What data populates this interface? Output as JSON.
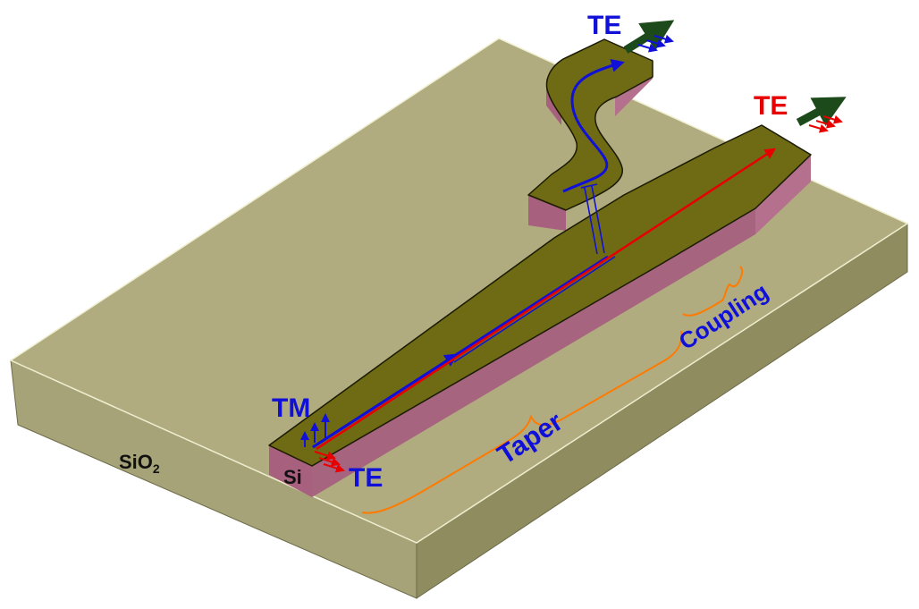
{
  "labels": {
    "substrate": "SiO",
    "substrate_subscript": "2",
    "core": "Si",
    "input_tm": "TM",
    "input_te": "TE",
    "output_cross_te": "TE",
    "output_through_te": "TE",
    "taper": "Taper",
    "coupling": "Coupling"
  },
  "colors": {
    "substrate_top": "#b0ac80",
    "substrate_front": "#a7a379",
    "substrate_right": "#8f8c60",
    "waveguide_top": "#6f6a14",
    "waveguide_side": "#a7607d",
    "tm_blue": "#1010d8",
    "te_red": "#e80000",
    "bracket_orange": "#ff7a00",
    "output_arrow_green": "#1d4a1a",
    "text_black": "#111111"
  }
}
